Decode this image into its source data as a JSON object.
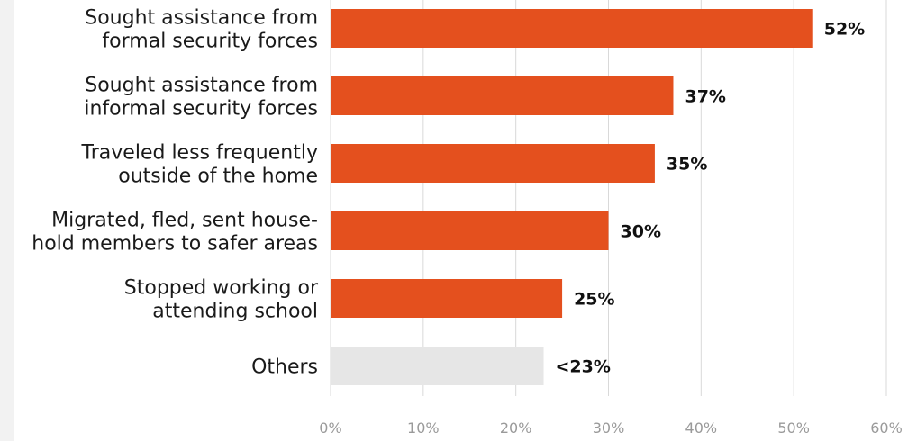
{
  "chart_data": {
    "type": "bar",
    "orientation": "horizontal",
    "categories": [
      [
        "Sought assistance from",
        "formal  security forces"
      ],
      [
        "Sought assistance from",
        "informal security forces"
      ],
      [
        "Traveled less frequently",
        "outside of the home"
      ],
      [
        "Migrated, fled, sent house-",
        "hold members to safer areas"
      ],
      [
        "Stopped working or",
        "attending school"
      ],
      [
        "Others"
      ]
    ],
    "values": [
      52,
      37,
      35,
      30,
      25,
      23
    ],
    "value_labels": [
      "52%",
      "37%",
      "35%",
      "30%",
      "25%",
      "<23%"
    ],
    "bar_colors": [
      "#e4501e",
      "#e4501e",
      "#e4501e",
      "#e4501e",
      "#e4501e",
      "#e6e6e6"
    ],
    "xlim": [
      0,
      60
    ],
    "xticks": [
      0,
      10,
      20,
      30,
      40,
      50,
      60
    ],
    "xtick_labels": [
      "0%",
      "10%",
      "20%",
      "30%",
      "40%",
      "50%",
      "60%"
    ],
    "grid": "vertical",
    "grid_color": "#d9d9d9",
    "title": "",
    "xlabel": "",
    "ylabel": ""
  }
}
